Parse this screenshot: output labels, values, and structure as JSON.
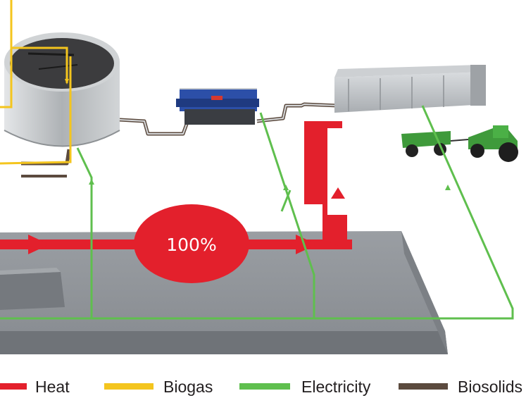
{
  "center_label": "100%",
  "legend": [
    {
      "label": "Heat",
      "color": "#e3202c"
    },
    {
      "label": "Biogas",
      "color": "#f4c51e"
    },
    {
      "label": "Electricity",
      "color": "#5fbf4e"
    },
    {
      "label": "Biosolids",
      "color": "#5b4a3e"
    }
  ],
  "colors": {
    "heat": "#e3202c",
    "biogas": "#f4c51e",
    "electricity": "#5fbf4e",
    "biosolids": "#5b4a3e",
    "platform": "#8f9398",
    "tank": "#b8bcbf",
    "tractor": "#3f9a3b",
    "press": "#2c4fa8"
  }
}
